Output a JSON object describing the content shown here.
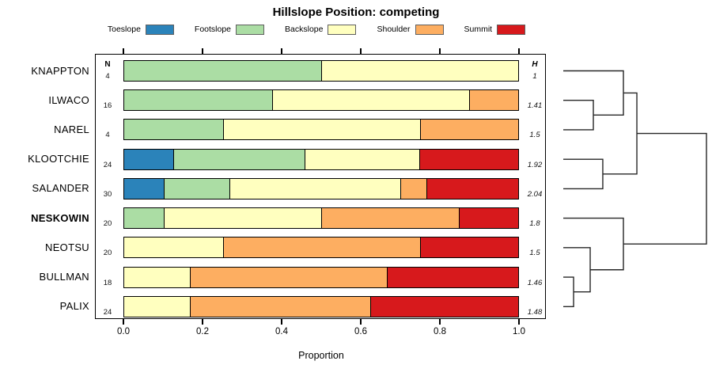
{
  "title": "Hillslope Position: competing",
  "legend": {
    "items": [
      {
        "label": "Toeslope",
        "color": "#2B83BA"
      },
      {
        "label": "Footslope",
        "color": "#ABDDA4"
      },
      {
        "label": "Backslope",
        "color": "#FFFFBF"
      },
      {
        "label": "Shoulder",
        "color": "#FDAE61"
      },
      {
        "label": "Summit",
        "color": "#D7191C"
      }
    ]
  },
  "columns": {
    "n_header": "N",
    "h_header": "H"
  },
  "axis": {
    "label": "Proportion",
    "tick_labels": [
      "0.0",
      "0.2",
      "0.4",
      "0.6",
      "0.8",
      "1.0"
    ]
  },
  "chart_data": {
    "type": "bar",
    "subtype": "horizontal-stacked-proportion",
    "title": "Hillslope Position: competing",
    "xlabel": "Proportion",
    "xlim": [
      0,
      1
    ],
    "xticks": [
      0,
      0.2,
      0.4,
      0.6,
      0.8,
      1.0
    ],
    "grid": false,
    "legend_position": "top",
    "categories": [
      "Toeslope",
      "Footslope",
      "Backslope",
      "Shoulder",
      "Summit"
    ],
    "colors": [
      "#2B83BA",
      "#ABDDA4",
      "#FFFFBF",
      "#FDAE61",
      "#D7191C"
    ],
    "rows": [
      {
        "label": "KNAPPTON",
        "n": 4,
        "h": "1",
        "bold": false,
        "proportions": [
          0,
          0.5,
          0.5,
          0,
          0
        ]
      },
      {
        "label": "ILWACO",
        "n": 16,
        "h": "1.41",
        "bold": false,
        "proportions": [
          0,
          0.375,
          0.5,
          0.125,
          0
        ]
      },
      {
        "label": "NAREL",
        "n": 4,
        "h": "1.5",
        "bold": false,
        "proportions": [
          0,
          0.25,
          0.5,
          0.25,
          0
        ]
      },
      {
        "label": "KLOOTCHIE",
        "n": 24,
        "h": "1.92",
        "bold": false,
        "proportions": [
          0.125,
          0.3333,
          0.2917,
          0,
          0.25
        ]
      },
      {
        "label": "SALANDER",
        "n": 30,
        "h": "2.04",
        "bold": false,
        "proportions": [
          0.1,
          0.1667,
          0.4333,
          0.0667,
          0.2333
        ]
      },
      {
        "label": "NESKOWIN",
        "n": 20,
        "h": "1.8",
        "bold": true,
        "proportions": [
          0,
          0.1,
          0.4,
          0.35,
          0.15
        ]
      },
      {
        "label": "NEOTSU",
        "n": 20,
        "h": "1.5",
        "bold": false,
        "proportions": [
          0,
          0,
          0.25,
          0.5,
          0.25
        ]
      },
      {
        "label": "BULLMAN",
        "n": 18,
        "h": "1.46",
        "bold": false,
        "proportions": [
          0,
          0,
          0.1667,
          0.5,
          0.3333
        ]
      },
      {
        "label": "PALIX",
        "n": 24,
        "h": "1.48",
        "bold": false,
        "proportions": [
          0,
          0,
          0.1667,
          0.4583,
          0.375
        ]
      }
    ]
  },
  "dendrogram": {
    "line_color": "#262626",
    "merges": [
      {
        "id": "m0",
        "a": "ILWACO",
        "b": "NAREL",
        "height": 0.21
      },
      {
        "id": "m1",
        "a": "KNAPPTON",
        "b": "m0",
        "height": 0.42
      },
      {
        "id": "m2",
        "a": "KLOOTCHIE",
        "b": "SALANDER",
        "height": 0.276
      },
      {
        "id": "m3",
        "a": "m1",
        "b": "m2",
        "height": 0.514
      },
      {
        "id": "m4",
        "a": "BULLMAN",
        "b": "PALIX",
        "height": 0.072
      },
      {
        "id": "m5",
        "a": "NEOTSU",
        "b": "m4",
        "height": 0.188
      },
      {
        "id": "m6",
        "a": "NESKOWIN",
        "b": "m5",
        "height": 0.42
      },
      {
        "id": "m7",
        "a": "m3",
        "b": "m6",
        "height": 1.0
      }
    ]
  }
}
